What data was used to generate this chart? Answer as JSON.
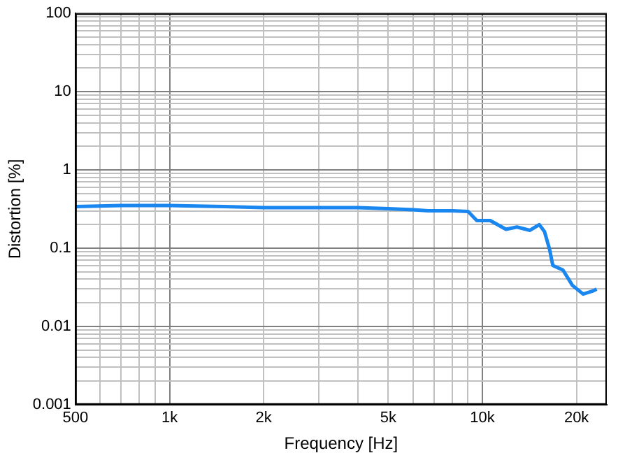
{
  "chart_data": {
    "type": "line",
    "xlabel": "Frequency [Hz]",
    "ylabel": "Distortion [%]",
    "log": "xy",
    "grid": true,
    "legend": false,
    "marker": "none",
    "line_style": "solid",
    "xlim": [
      500,
      25000
    ],
    "ylim": [
      0.001,
      100
    ],
    "xticks": [
      500,
      {
        "value": 600,
        "label": null
      },
      {
        "value": 700,
        "label": null
      },
      {
        "value": 800,
        "label": null
      },
      {
        "value": 900,
        "label": null
      },
      {
        "value": 1000,
        "label": "1k"
      },
      {
        "value": 2000,
        "label": "2k"
      },
      {
        "value": 3000,
        "label": null
      },
      {
        "value": 4000,
        "label": null
      },
      {
        "value": 5000,
        "label": "5k"
      },
      {
        "value": 6000,
        "label": null
      },
      {
        "value": 7000,
        "label": null
      },
      {
        "value": 8000,
        "label": null
      },
      {
        "value": 9000,
        "label": null
      },
      {
        "value": 10000,
        "label": "10k"
      },
      {
        "value": 20000,
        "label": "20k"
      }
    ],
    "yticks": [
      0.001,
      {
        "value": 0.002,
        "label": null
      },
      {
        "value": 0.003,
        "label": null
      },
      {
        "value": 0.004,
        "label": null
      },
      {
        "value": 0.005,
        "label": null
      },
      {
        "value": 0.006,
        "label": null
      },
      {
        "value": 0.007,
        "label": null
      },
      {
        "value": 0.008,
        "label": null
      },
      {
        "value": 0.009,
        "label": null
      },
      0.01,
      {
        "value": 0.02,
        "label": null
      },
      {
        "value": 0.03,
        "label": null
      },
      {
        "value": 0.04,
        "label": null
      },
      {
        "value": 0.05,
        "label": null
      },
      {
        "value": 0.06,
        "label": null
      },
      {
        "value": 0.07,
        "label": null
      },
      {
        "value": 0.08,
        "label": null
      },
      {
        "value": 0.09,
        "label": null
      },
      0.1,
      {
        "value": 0.2,
        "label": null
      },
      {
        "value": 0.3,
        "label": null
      },
      {
        "value": 0.4,
        "label": null
      },
      {
        "value": 0.5,
        "label": null
      },
      {
        "value": 0.6,
        "label": null
      },
      {
        "value": 0.7,
        "label": null
      },
      {
        "value": 0.8,
        "label": null
      },
      {
        "value": 0.9,
        "label": null
      },
      1,
      {
        "value": 2,
        "label": null
      },
      {
        "value": 3,
        "label": null
      },
      {
        "value": 4,
        "label": null
      },
      {
        "value": 5,
        "label": null
      },
      {
        "value": 6,
        "label": null
      },
      {
        "value": 7,
        "label": null
      },
      {
        "value": 8,
        "label": null
      },
      {
        "value": 9,
        "label": null
      },
      10,
      {
        "value": 20,
        "label": null
      },
      {
        "value": 30,
        "label": null
      },
      {
        "value": 40,
        "label": null
      },
      {
        "value": 50,
        "label": null
      },
      {
        "value": 60,
        "label": null
      },
      {
        "value": 70,
        "label": null
      },
      {
        "value": 80,
        "label": null
      },
      {
        "value": 90,
        "label": null
      },
      100
    ],
    "series": [
      {
        "color": "#1a86f0",
        "x": [
          500,
          700,
          1000,
          1500,
          2000,
          3000,
          4000,
          5000,
          6000,
          6700,
          8000,
          9000,
          9600,
          10600,
          11900,
          12900,
          14200,
          15200,
          15800,
          16400,
          16800,
          18100,
          19400,
          21000,
          22600,
          23200
        ],
        "values": [
          0.34,
          0.35,
          0.35,
          0.34,
          0.33,
          0.33,
          0.33,
          0.32,
          0.31,
          0.3,
          0.3,
          0.295,
          0.225,
          0.225,
          0.174,
          0.186,
          0.169,
          0.2,
          0.163,
          0.097,
          0.06,
          0.0525,
          0.0335,
          0.0259,
          0.0284,
          0.03
        ]
      }
    ]
  }
}
